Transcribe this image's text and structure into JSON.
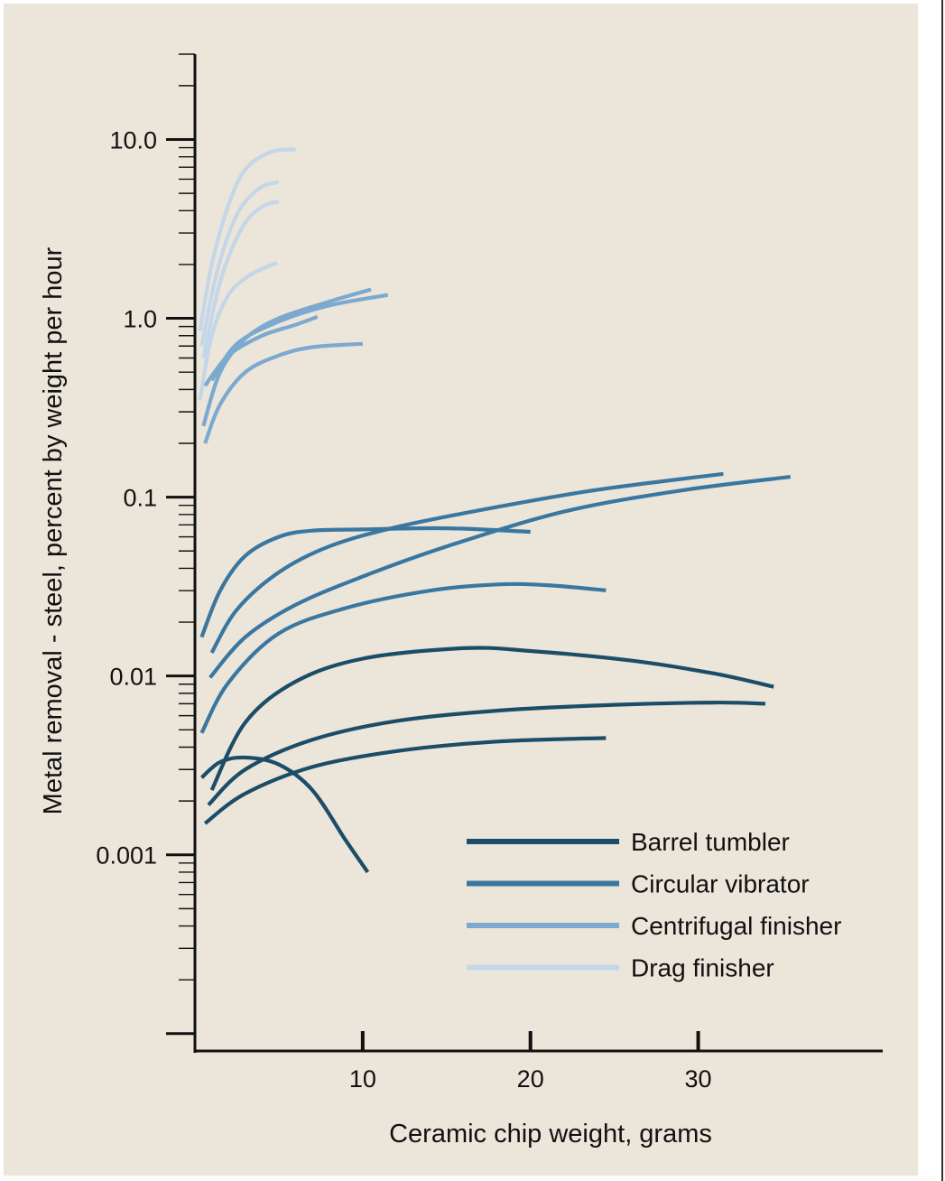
{
  "chart_data": {
    "type": "line",
    "xlabel": "Ceramic chip weight, grams",
    "ylabel": "Metal removal - steel, percent by weight per hour",
    "x_ticks": [
      "10",
      "20",
      "30"
    ],
    "y_ticks": [
      "10.0",
      "1.0",
      "0.1",
      "0.01",
      "0.001"
    ],
    "y_scale": "log",
    "xlim": [
      0,
      41
    ],
    "ylim": [
      8e-05,
      30
    ],
    "legend_position": "lower-right",
    "legend": [
      {
        "label": "Barrel tumbler",
        "color": "#1c4d68"
      },
      {
        "label": "Circular vibrator",
        "color": "#3a77a0"
      },
      {
        "label": "Centrifugal finisher",
        "color": "#7ba9cf"
      },
      {
        "label": "Drag finisher",
        "color": "#c3d7e8"
      }
    ],
    "series": [
      {
        "group": 0,
        "points": [
          [
            0.4,
            0.0027
          ],
          [
            1.5,
            0.0033
          ],
          [
            3,
            0.0035
          ],
          [
            5,
            0.0032
          ],
          [
            7,
            0.0023
          ],
          [
            9,
            0.0012
          ],
          [
            10.3,
            0.0008
          ]
        ]
      },
      {
        "group": 0,
        "points": [
          [
            1,
            0.0023
          ],
          [
            3,
            0.0055
          ],
          [
            6,
            0.0093
          ],
          [
            10,
            0.0125
          ],
          [
            16,
            0.0143
          ],
          [
            20,
            0.0138
          ],
          [
            26,
            0.0122
          ],
          [
            31,
            0.0103
          ],
          [
            34.5,
            0.0087
          ]
        ]
      },
      {
        "group": 0,
        "points": [
          [
            0.8,
            0.0019
          ],
          [
            3,
            0.003
          ],
          [
            7,
            0.0044
          ],
          [
            12,
            0.0056
          ],
          [
            18,
            0.0064
          ],
          [
            25,
            0.0069
          ],
          [
            31,
            0.0071
          ],
          [
            34,
            0.007
          ]
        ]
      },
      {
        "group": 0,
        "points": [
          [
            0.6,
            0.0015
          ],
          [
            3,
            0.0022
          ],
          [
            7,
            0.0031
          ],
          [
            12,
            0.0038
          ],
          [
            18,
            0.0043
          ],
          [
            24.5,
            0.0045
          ]
        ]
      },
      {
        "group": 1,
        "points": [
          [
            0.4,
            0.0165
          ],
          [
            1.5,
            0.03
          ],
          [
            3,
            0.047
          ],
          [
            5,
            0.06
          ],
          [
            7,
            0.065
          ],
          [
            10,
            0.066
          ],
          [
            15,
            0.067
          ],
          [
            20,
            0.064
          ]
        ]
      },
      {
        "group": 1,
        "points": [
          [
            1,
            0.0135
          ],
          [
            2.5,
            0.0235
          ],
          [
            5,
            0.038
          ],
          [
            8,
            0.053
          ],
          [
            12,
            0.068
          ],
          [
            18,
            0.088
          ],
          [
            24,
            0.11
          ],
          [
            31.5,
            0.135
          ]
        ]
      },
      {
        "group": 1,
        "points": [
          [
            0.9,
            0.0098
          ],
          [
            3,
            0.0165
          ],
          [
            6,
            0.025
          ],
          [
            10,
            0.036
          ],
          [
            15,
            0.053
          ],
          [
            22,
            0.083
          ],
          [
            29,
            0.109
          ],
          [
            35.5,
            0.13
          ]
        ]
      },
      {
        "group": 1,
        "points": [
          [
            0.4,
            0.0048
          ],
          [
            2,
            0.0092
          ],
          [
            5,
            0.0173
          ],
          [
            9,
            0.024
          ],
          [
            14,
            0.03
          ],
          [
            18,
            0.0325
          ],
          [
            21,
            0.0322
          ],
          [
            24.5,
            0.0301
          ]
        ]
      },
      {
        "group": 2,
        "points": [
          [
            0.5,
            0.25
          ],
          [
            1.5,
            0.5
          ],
          [
            3,
            0.77
          ],
          [
            5,
            1.0
          ],
          [
            8,
            1.24
          ],
          [
            10.5,
            1.45
          ]
        ]
      },
      {
        "group": 2,
        "points": [
          [
            1,
            0.45
          ],
          [
            2.5,
            0.72
          ],
          [
            5,
            0.96
          ],
          [
            8,
            1.18
          ],
          [
            11.5,
            1.35
          ]
        ]
      },
      {
        "group": 2,
        "points": [
          [
            0.6,
            0.42
          ],
          [
            2,
            0.62
          ],
          [
            4,
            0.8
          ],
          [
            6,
            0.92
          ],
          [
            7.3,
            1.02
          ]
        ]
      },
      {
        "group": 2,
        "points": [
          [
            0.6,
            0.2
          ],
          [
            1.5,
            0.33
          ],
          [
            3,
            0.5
          ],
          [
            5,
            0.62
          ],
          [
            7,
            0.69
          ],
          [
            10,
            0.72
          ]
        ]
      },
      {
        "group": 3,
        "points": [
          [
            0.3,
            0.85
          ],
          [
            1,
            2
          ],
          [
            2,
            4.3
          ],
          [
            3,
            6.8
          ],
          [
            4.5,
            8.5
          ],
          [
            6,
            8.8
          ]
        ]
      },
      {
        "group": 3,
        "points": [
          [
            0.4,
            0.7
          ],
          [
            1.3,
            1.8
          ],
          [
            2.5,
            3.8
          ],
          [
            3.8,
            5.3
          ],
          [
            5,
            5.8
          ]
        ]
      },
      {
        "group": 3,
        "points": [
          [
            0.5,
            0.6
          ],
          [
            1.5,
            1.6
          ],
          [
            2.8,
            3.2
          ],
          [
            4,
            4.2
          ],
          [
            5,
            4.5
          ]
        ]
      },
      {
        "group": 3,
        "points": [
          [
            0.3,
            0.35
          ],
          [
            1,
            0.8
          ],
          [
            2,
            1.35
          ],
          [
            3.3,
            1.75
          ],
          [
            4.9,
            2.05
          ]
        ]
      }
    ]
  }
}
